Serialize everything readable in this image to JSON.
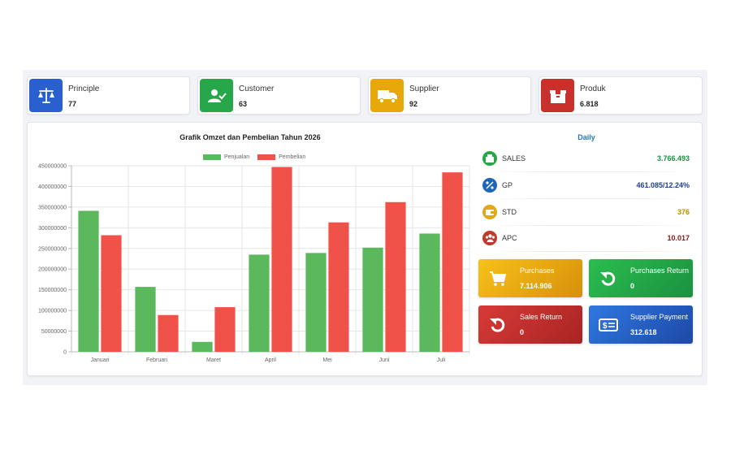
{
  "colors": {
    "principle": "#2a5fcf",
    "customer": "#27a64a",
    "supplier": "#e8a80c",
    "produk": "#c9302c",
    "penjualan": "#5cb85c",
    "pembelian": "#f0524a",
    "daily_title": "#1c74c6"
  },
  "stats": [
    {
      "label": "Principle",
      "value": "77",
      "icon": "scale-icon"
    },
    {
      "label": "Customer",
      "value": "63",
      "icon": "user-check-icon"
    },
    {
      "label": "Supplier",
      "value": "92",
      "icon": "truck-icon"
    },
    {
      "label": "Produk",
      "value": "6.818",
      "icon": "box-icon"
    }
  ],
  "chart_data": {
    "type": "bar",
    "title": "Grafik Omzet dan Pembelian Tahun 2026",
    "categories": [
      "Januari",
      "Februari",
      "Maret",
      "April",
      "Mei",
      "Juni",
      "Juli"
    ],
    "series": [
      {
        "name": "Penjualan",
        "color": "#5cb85c",
        "values": [
          341000000,
          157000000,
          24000000,
          235000000,
          239000000,
          252000000,
          286000000
        ]
      },
      {
        "name": "Pembelian",
        "color": "#f0524a",
        "values": [
          282000000,
          89000000,
          108000000,
          447000000,
          313000000,
          362000000,
          434000000
        ]
      }
    ],
    "ylim": [
      0,
      450000000
    ],
    "yticks": [
      "0",
      "50000000",
      "100000000",
      "150000000",
      "200000000",
      "250000000",
      "300000000",
      "350000000",
      "400000000",
      "450000000"
    ],
    "grid": true,
    "legend": "top-center"
  },
  "daily": {
    "title": "Daily",
    "rows": [
      {
        "label": "SALES",
        "value": "3.766.493",
        "icon": "sales-icon",
        "icon_color": "#28a745",
        "value_color": "#1e8f3e"
      },
      {
        "label": "GP",
        "value": "461.085/12.24%",
        "icon": "percent-icon",
        "icon_color": "#1f65b8",
        "value_color": "#1d3f8f"
      },
      {
        "label": "STD",
        "value": "376",
        "icon": "wallet-icon",
        "icon_color": "#e0a81a",
        "value_color": "#c08a08"
      },
      {
        "label": "APC",
        "value": "10.017",
        "icon": "users-icon",
        "icon_color": "#c0392b",
        "value_color": "#8b1a1a"
      }
    ]
  },
  "tiles": [
    {
      "label": "Purchases",
      "value": "7.114.906",
      "icon": "cart-icon"
    },
    {
      "label": "Purchases Return",
      "value": "0",
      "icon": "undo-icon"
    },
    {
      "label": "Sales Return",
      "value": "0",
      "icon": "undo-icon"
    },
    {
      "label": "Supplier Payment",
      "value": "312.618",
      "icon": "money-icon"
    }
  ]
}
